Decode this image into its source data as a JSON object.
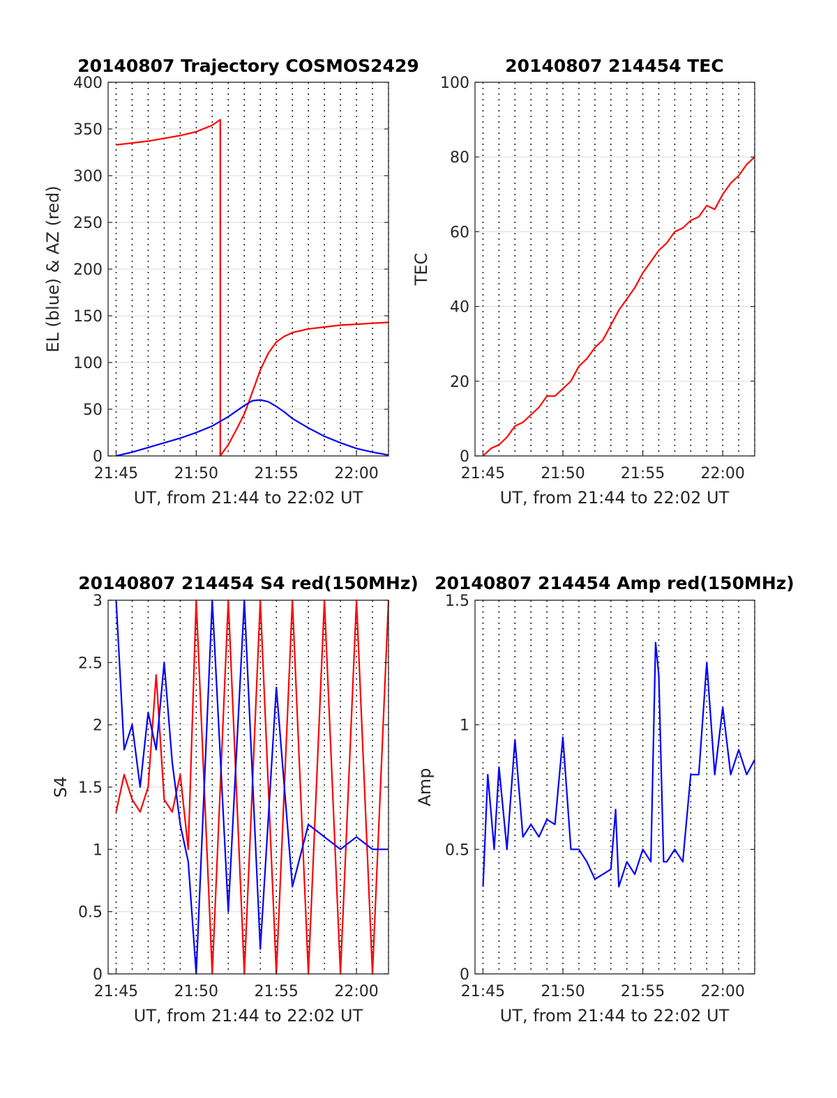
{
  "colors": {
    "az": "#ff0000",
    "el": "#0000ff",
    "tec": "#ff0000",
    "s4_red": "#ff0000",
    "s4_blue": "#0000ff",
    "amp": "#0000ff",
    "grid": "#e0e0e0",
    "vgrid": "#000000"
  },
  "chart_data": [
    {
      "id": "trajectory",
      "type": "line",
      "title": "20140807 Trajectory COSMOS2429",
      "xlabel": "UT, from 21:44 to 22:02 UT",
      "ylabel": "EL (blue) & AZ (red)",
      "xlim_min": [
        44.5,
        62.0
      ],
      "ylim": [
        0,
        400
      ],
      "xtick_labels": [
        "21:45",
        "21:50",
        "21:55",
        "22:00"
      ],
      "xtick_min": [
        45,
        50,
        55,
        60
      ],
      "ytick_labels": [
        "0",
        "50",
        "100",
        "150",
        "200",
        "250",
        "300",
        "350",
        "400"
      ],
      "ytick_values": [
        0,
        50,
        100,
        150,
        200,
        250,
        300,
        350,
        400
      ],
      "grid": "horizontal solid light gray, vertical dotted every minute",
      "series": [
        {
          "color": "#ff0000",
          "x_min": [
            45.0,
            46.0,
            47.0,
            48.0,
            49.0,
            50.0,
            51.0,
            51.5,
            51.5,
            52.0,
            52.5,
            53.0,
            53.5,
            54.0,
            54.5,
            55.0,
            55.5,
            56.0,
            57.0,
            58.0,
            59.0,
            60.0,
            61.0,
            62.0
          ],
          "values": [
            333,
            335,
            337,
            340,
            343,
            347,
            354,
            360,
            0,
            12,
            28,
            45,
            68,
            92,
            110,
            122,
            128,
            132,
            136,
            138,
            140,
            141,
            142,
            143
          ]
        },
        {
          "color": "#0000ff",
          "x_min": [
            45.0,
            46.0,
            47.0,
            48.0,
            49.0,
            50.0,
            51.0,
            52.0,
            52.5,
            53.0,
            53.5,
            54.0,
            54.5,
            55.0,
            55.5,
            56.0,
            57.0,
            58.0,
            59.0,
            60.0,
            61.0,
            62.0
          ],
          "values": [
            0,
            4,
            9,
            14,
            19,
            25,
            32,
            42,
            48,
            54,
            59,
            60,
            58,
            53,
            47,
            40,
            30,
            21,
            14,
            8,
            4,
            1
          ]
        }
      ]
    },
    {
      "id": "tec",
      "type": "line",
      "title": "20140807 214454 TEC",
      "xlabel": "UT, from 21:44 to 22:02 UT",
      "ylabel": "TEC",
      "xlim_min": [
        44.5,
        62.0
      ],
      "ylim": [
        0,
        100
      ],
      "xtick_labels": [
        "21:45",
        "21:50",
        "21:55",
        "22:00"
      ],
      "xtick_min": [
        45,
        50,
        55,
        60
      ],
      "ytick_labels": [
        "0",
        "20",
        "40",
        "60",
        "80",
        "100"
      ],
      "ytick_values": [
        0,
        20,
        40,
        60,
        80,
        100
      ],
      "series": [
        {
          "color": "#ff0000",
          "x_min": [
            45.0,
            45.5,
            46.0,
            46.5,
            47.0,
            47.5,
            48.0,
            48.5,
            49.0,
            49.5,
            50.0,
            50.5,
            51.0,
            51.5,
            52.0,
            52.5,
            53.0,
            53.5,
            54.0,
            54.5,
            55.0,
            55.5,
            56.0,
            56.5,
            57.0,
            57.5,
            58.0,
            58.5,
            59.0,
            59.5,
            60.0,
            60.5,
            61.0,
            61.5,
            62.0
          ],
          "values": [
            0,
            2,
            3,
            5,
            8,
            9,
            11,
            13,
            16,
            16,
            18,
            20,
            24,
            26,
            29,
            31,
            35,
            39,
            42,
            45,
            49,
            52,
            55,
            57,
            60,
            61,
            63,
            64,
            67,
            66,
            70,
            73,
            75,
            78,
            80
          ]
        }
      ]
    },
    {
      "id": "s4",
      "type": "line",
      "title": "20140807 214454 S4 red(150MHz)",
      "xlabel": "UT, from 21:44 to 22:02 UT",
      "ylabel": "S4",
      "xlim_min": [
        44.5,
        62.0
      ],
      "ylim": [
        0,
        3
      ],
      "xtick_labels": [
        "21:45",
        "21:50",
        "21:55",
        "22:00"
      ],
      "xtick_min": [
        45,
        50,
        55,
        60
      ],
      "ytick_labels": [
        "0",
        "0.5",
        "1",
        "1.5",
        "2",
        "2.5",
        "3"
      ],
      "ytick_values": [
        0,
        0.5,
        1,
        1.5,
        2,
        2.5,
        3
      ],
      "series": [
        {
          "color": "#ff0000",
          "x_min": [
            45.0,
            45.5,
            46.0,
            46.5,
            47.0,
            47.5,
            48.0,
            48.5,
            49.0,
            49.5,
            50.0,
            51.0,
            52.0,
            53.0,
            54.0,
            55.0,
            56.0,
            57.0,
            58.0,
            59.0,
            60.0,
            61.0,
            62.0
          ],
          "values": [
            1.3,
            1.6,
            1.4,
            1.3,
            1.5,
            2.4,
            1.4,
            1.3,
            1.6,
            1.0,
            3.0,
            0.0,
            3.0,
            0.0,
            3.0,
            0.0,
            3.0,
            0.0,
            3.0,
            0.0,
            3.0,
            0.0,
            3.0
          ]
        },
        {
          "color": "#0000ff",
          "x_min": [
            45.0,
            45.5,
            46.0,
            46.5,
            47.0,
            47.5,
            48.0,
            48.5,
            49.0,
            49.5,
            50.0,
            51.0,
            52.0,
            53.0,
            54.0,
            55.0,
            56.0,
            57.0,
            58.0,
            59.0,
            60.0,
            61.0,
            62.0
          ],
          "values": [
            3.0,
            1.8,
            2.0,
            1.5,
            2.1,
            1.8,
            2.5,
            1.7,
            1.2,
            0.9,
            0.0,
            3.0,
            0.5,
            3.0,
            0.2,
            2.3,
            0.7,
            1.2,
            1.1,
            1.0,
            1.1,
            1.0,
            1.0
          ]
        }
      ]
    },
    {
      "id": "amp",
      "type": "line",
      "title": "20140807 214454 Amp red(150MHz)",
      "xlabel": "UT, from 21:44 to 22:02 UT",
      "ylabel": "Amp",
      "xlim_min": [
        44.5,
        62.0
      ],
      "ylim": [
        0,
        1.5
      ],
      "xtick_labels": [
        "21:45",
        "21:50",
        "21:55",
        "22:00"
      ],
      "xtick_min": [
        45,
        50,
        55,
        60
      ],
      "ytick_labels": [
        "0",
        "0.5",
        "1",
        "1.5"
      ],
      "ytick_values": [
        0,
        0.5,
        1,
        1.5
      ],
      "series": [
        {
          "color": "#0000ff",
          "x_min": [
            45.0,
            45.3,
            45.7,
            46.0,
            46.5,
            47.0,
            47.5,
            48.0,
            48.5,
            49.0,
            49.5,
            50.0,
            50.5,
            51.0,
            51.5,
            52.0,
            52.5,
            53.0,
            53.3,
            53.5,
            54.0,
            54.5,
            55.0,
            55.5,
            55.8,
            56.0,
            56.3,
            56.5,
            57.0,
            57.5,
            58.0,
            58.5,
            59.0,
            59.5,
            60.0,
            60.5,
            61.0,
            61.5,
            62.0
          ],
          "values": [
            0.35,
            0.8,
            0.5,
            0.83,
            0.5,
            0.94,
            0.55,
            0.6,
            0.55,
            0.62,
            0.6,
            0.95,
            0.5,
            0.5,
            0.45,
            0.38,
            0.4,
            0.42,
            0.66,
            0.35,
            0.45,
            0.4,
            0.5,
            0.45,
            1.33,
            1.2,
            0.45,
            0.45,
            0.5,
            0.45,
            0.8,
            0.8,
            1.25,
            0.8,
            1.07,
            0.8,
            0.9,
            0.8,
            0.86
          ]
        }
      ]
    }
  ]
}
